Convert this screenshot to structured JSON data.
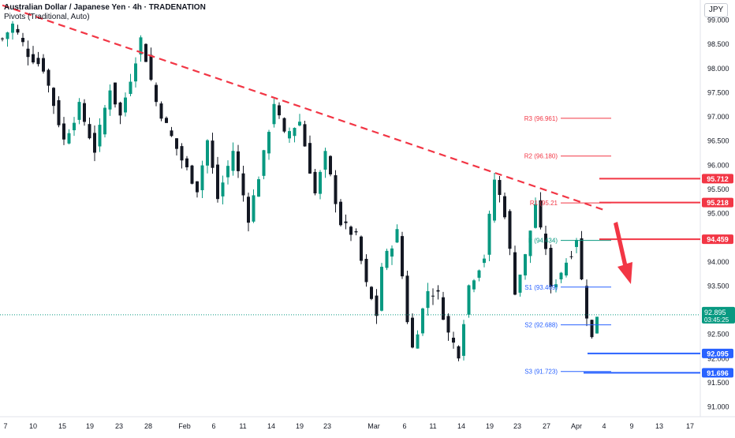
{
  "header": {
    "title": "Australian Dollar / Japanese Yen · 4h · TRADENATION",
    "subtitle": "Pivots (Traditional, Auto)",
    "currency": "JPY"
  },
  "chart_data": {
    "type": "candlestick",
    "title": "Australian Dollar / Japanese Yen · 4h · TRADENATION",
    "indicator": "Pivots (Traditional, Auto)",
    "y_axis_ticks": [
      "99.000",
      "98.500",
      "98.000",
      "97.500",
      "97.000",
      "96.500",
      "96.000",
      "95.500",
      "95.000",
      "94.500",
      "94.000",
      "93.500",
      "93.000",
      "92.500",
      "92.000",
      "91.500",
      "91.000"
    ],
    "x_axis_ticks": [
      "7",
      "10",
      "15",
      "19",
      "23",
      "28",
      "Feb",
      "6",
      "11",
      "14",
      "19",
      "23",
      "Mar",
      "6",
      "11",
      "14",
      "19",
      "23",
      "27",
      "Apr",
      "4",
      "9",
      "13",
      "17"
    ],
    "price_path": [
      [
        0,
        98.6
      ],
      [
        2,
        98.9
      ],
      [
        5,
        98.3
      ],
      [
        8,
        98.0
      ],
      [
        12,
        96.5
      ],
      [
        15,
        97.2
      ],
      [
        18,
        96.3
      ],
      [
        21,
        97.6
      ],
      [
        23,
        97.0
      ],
      [
        27,
        98.6
      ],
      [
        28,
        98.2
      ],
      [
        30,
        97.3
      ],
      [
        32,
        96.8
      ],
      [
        35,
        96.1
      ],
      [
        38,
        95.5
      ],
      [
        40,
        96.5
      ],
      [
        42,
        95.3
      ],
      [
        45,
        96.3
      ],
      [
        48,
        94.9
      ],
      [
        51,
        96.2
      ],
      [
        53,
        97.3
      ],
      [
        55,
        96.6
      ],
      [
        58,
        96.9
      ],
      [
        61,
        95.4
      ],
      [
        63,
        96.2
      ],
      [
        66,
        94.8
      ],
      [
        69,
        94.5
      ],
      [
        71,
        93.5
      ],
      [
        73,
        92.9
      ],
      [
        74,
        93.9
      ],
      [
        77,
        94.6
      ],
      [
        79,
        92.8
      ],
      [
        80,
        92.2
      ],
      [
        83,
        93.4
      ],
      [
        85,
        93.3
      ],
      [
        87,
        92.5
      ],
      [
        89,
        92.1
      ],
      [
        91,
        93.5
      ],
      [
        94,
        94.1
      ],
      [
        96,
        95.7
      ],
      [
        98,
        95.0
      ],
      [
        99,
        94.2
      ],
      [
        100,
        93.4
      ],
      [
        102,
        94.1
      ],
      [
        104,
        95.2
      ],
      [
        105,
        94.6
      ],
      [
        106,
        94.3
      ],
      [
        107,
        93.4
      ],
      [
        109,
        93.8
      ],
      [
        111,
        94.2
      ],
      [
        112,
        94.5
      ],
      [
        113,
        93.6
      ],
      [
        114,
        92.9
      ],
      [
        115,
        92.4
      ],
      [
        116,
        92.9
      ]
    ],
    "last_price": 92.895,
    "countdown": "03:45:25",
    "pivots": [
      {
        "name": "R3",
        "label": "R3 (96.961)",
        "value": 96.961,
        "color": "#f23645"
      },
      {
        "name": "R2",
        "label": "R2 (96.180)",
        "value": 96.18,
        "color": "#f23645"
      },
      {
        "name": "R1",
        "label": "R1 (95.21",
        "value": 95.21,
        "color": "#f23645"
      },
      {
        "name": "P",
        "label": "P (94.434)",
        "value": 94.434,
        "color": "#089981"
      },
      {
        "name": "S1",
        "label": "S1 (93.469)",
        "value": 93.469,
        "color": "#2962ff"
      },
      {
        "name": "S2",
        "label": "S2 (92.688)",
        "value": 92.688,
        "color": "#2962ff"
      },
      {
        "name": "S3",
        "label": "S3 (91.723)",
        "value": 91.723,
        "color": "#2962ff"
      }
    ],
    "levels": [
      {
        "value": 95.712,
        "label": "95.712",
        "color": "#f23645"
      },
      {
        "value": 95.218,
        "label": "95.218",
        "color": "#f23645"
      },
      {
        "value": 94.459,
        "label": "94.459",
        "color": "#f23645"
      },
      {
        "value": 92.095,
        "label": "92.095",
        "color": "#2962ff"
      },
      {
        "value": 91.696,
        "label": "91.696",
        "color": "#2962ff"
      }
    ],
    "trendline": {
      "style": "dashed",
      "color": "#f23645",
      "from": {
        "x_index": 0,
        "y": 99.3
      },
      "to": {
        "x_index": 117,
        "y": 95.05
      }
    },
    "arrow": {
      "direction": "down",
      "color": "#f23645"
    },
    "colors": {
      "up": "#089981",
      "down": "#131722",
      "current_price": "#089981",
      "grid": "#ffffff"
    }
  }
}
